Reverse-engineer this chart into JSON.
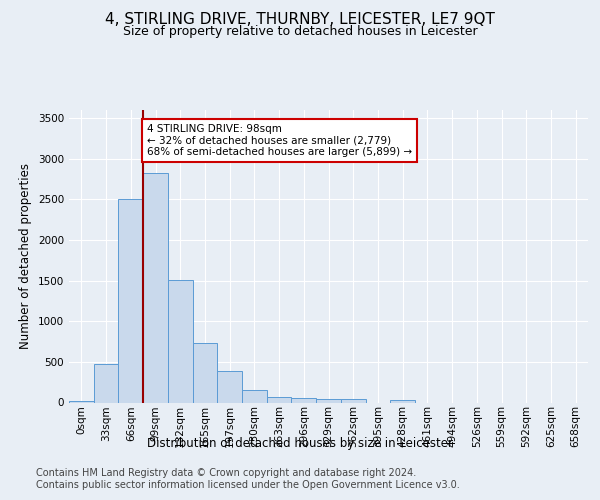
{
  "title": "4, STIRLING DRIVE, THURNBY, LEICESTER, LE7 9QT",
  "subtitle": "Size of property relative to detached houses in Leicester",
  "xlabel": "Distribution of detached houses by size in Leicester",
  "ylabel": "Number of detached properties",
  "bin_labels": [
    "0sqm",
    "33sqm",
    "66sqm",
    "99sqm",
    "132sqm",
    "165sqm",
    "197sqm",
    "230sqm",
    "263sqm",
    "296sqm",
    "329sqm",
    "362sqm",
    "395sqm",
    "428sqm",
    "461sqm",
    "494sqm",
    "526sqm",
    "559sqm",
    "592sqm",
    "625sqm",
    "658sqm"
  ],
  "bar_values": [
    20,
    470,
    2510,
    2830,
    1510,
    730,
    385,
    155,
    70,
    50,
    45,
    40,
    0,
    30,
    0,
    0,
    0,
    0,
    0,
    0,
    0
  ],
  "bar_color": "#c9d9ec",
  "bar_edge_color": "#5b9bd5",
  "property_line_x": 3,
  "property_line_color": "#990000",
  "annotation_text": "4 STIRLING DRIVE: 98sqm\n← 32% of detached houses are smaller (2,779)\n68% of semi-detached houses are larger (5,899) →",
  "annotation_box_color": "#ffffff",
  "annotation_box_edge_color": "#cc0000",
  "ylim": [
    0,
    3600
  ],
  "yticks": [
    0,
    500,
    1000,
    1500,
    2000,
    2500,
    3000,
    3500
  ],
  "footer_line1": "Contains HM Land Registry data © Crown copyright and database right 2024.",
  "footer_line2": "Contains public sector information licensed under the Open Government Licence v3.0.",
  "bg_color": "#e8eef5",
  "plot_bg_color": "#e8eef5",
  "title_fontsize": 11,
  "subtitle_fontsize": 9,
  "axis_label_fontsize": 8.5,
  "tick_fontsize": 7.5,
  "footer_fontsize": 7
}
